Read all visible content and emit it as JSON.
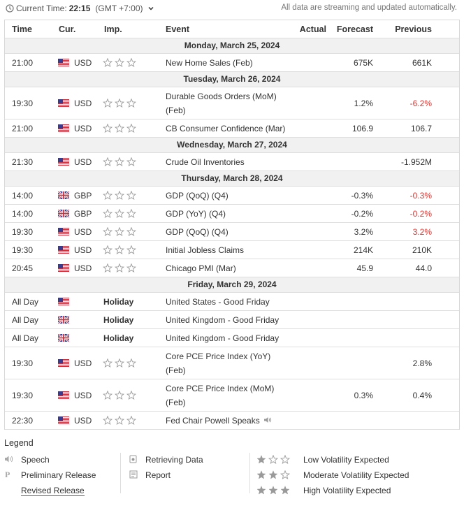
{
  "header": {
    "current_time_label": "Current Time:",
    "current_time": "22:15",
    "timezone": "(GMT +7:00)",
    "note": "All data are streaming and updated automatically."
  },
  "table": {
    "columns": [
      "Time",
      "Cur.",
      "Imp.",
      "Event",
      "Actual",
      "Forecast",
      "Previous"
    ],
    "negative_color": "#e0332f",
    "groups": [
      {
        "date": "Monday, March 25, 2024",
        "rows": [
          {
            "time": "21:00",
            "flag": "us",
            "currency": "USD",
            "event": "New Home Sales (Feb)",
            "forecast": "675K",
            "previous": "661K"
          }
        ]
      },
      {
        "date": "Tuesday, March 26, 2024",
        "rows": [
          {
            "time": "19:30",
            "flag": "us",
            "currency": "USD",
            "event": "Durable Goods Orders (MoM) (Feb)",
            "forecast": "1.2%",
            "previous": "-6.2%",
            "previous_negative": true
          },
          {
            "time": "21:00",
            "flag": "us",
            "currency": "USD",
            "event": "CB Consumer Confidence (Mar)",
            "forecast": "106.9",
            "previous": "106.7"
          }
        ]
      },
      {
        "date": "Wednesday, March 27, 2024",
        "rows": [
          {
            "time": "21:30",
            "flag": "us",
            "currency": "USD",
            "event": "Crude Oil Inventories",
            "previous": "-1.952M"
          }
        ]
      },
      {
        "date": "Thursday, March 28, 2024",
        "rows": [
          {
            "time": "14:00",
            "flag": "uk",
            "currency": "GBP",
            "event": "GDP (QoQ) (Q4)",
            "forecast": "-0.3%",
            "previous": "-0.3%",
            "previous_negative": true
          },
          {
            "time": "14:00",
            "flag": "uk",
            "currency": "GBP",
            "event": "GDP (YoY) (Q4)",
            "forecast": "-0.2%",
            "previous": "-0.2%",
            "previous_negative": true
          },
          {
            "time": "19:30",
            "flag": "us",
            "currency": "USD",
            "event": "GDP (QoQ) (Q4)",
            "forecast": "3.2%",
            "previous": "3.2%",
            "previous_negative": true
          },
          {
            "time": "19:30",
            "flag": "us",
            "currency": "USD",
            "event": "Initial Jobless Claims",
            "forecast": "214K",
            "previous": "210K"
          },
          {
            "time": "20:45",
            "flag": "us",
            "currency": "USD",
            "event": "Chicago PMI (Mar)",
            "forecast": "45.9",
            "previous": "44.0"
          }
        ]
      },
      {
        "date": "Friday, March 29, 2024",
        "rows": [
          {
            "time": "All Day",
            "flag": "us",
            "holiday": "Holiday",
            "event": "United States - Good Friday"
          },
          {
            "time": "All Day",
            "flag": "uk",
            "holiday": "Holiday",
            "event": "United Kingdom - Good Friday"
          },
          {
            "time": "All Day",
            "flag": "uk",
            "holiday": "Holiday",
            "event": "United Kingdom - Good Friday"
          },
          {
            "time": "19:30",
            "flag": "us",
            "currency": "USD",
            "event": "Core PCE Price Index (YoY) (Feb)",
            "previous": "2.8%"
          },
          {
            "time": "19:30",
            "flag": "us",
            "currency": "USD",
            "event": "Core PCE Price Index (MoM) (Feb)",
            "forecast": "0.3%",
            "previous": "0.4%"
          },
          {
            "time": "22:30",
            "flag": "us",
            "currency": "USD",
            "event": "Fed Chair Powell Speaks",
            "speech": true
          }
        ]
      }
    ]
  },
  "legend": {
    "title": "Legend",
    "columns": [
      [
        "Speech",
        "Preliminary Release",
        "Revised Release"
      ],
      [
        "Retrieving Data",
        "Report"
      ],
      [
        "Low Volatility Expected",
        "Moderate Volatility Expected",
        "High Volatility Expected"
      ]
    ]
  }
}
